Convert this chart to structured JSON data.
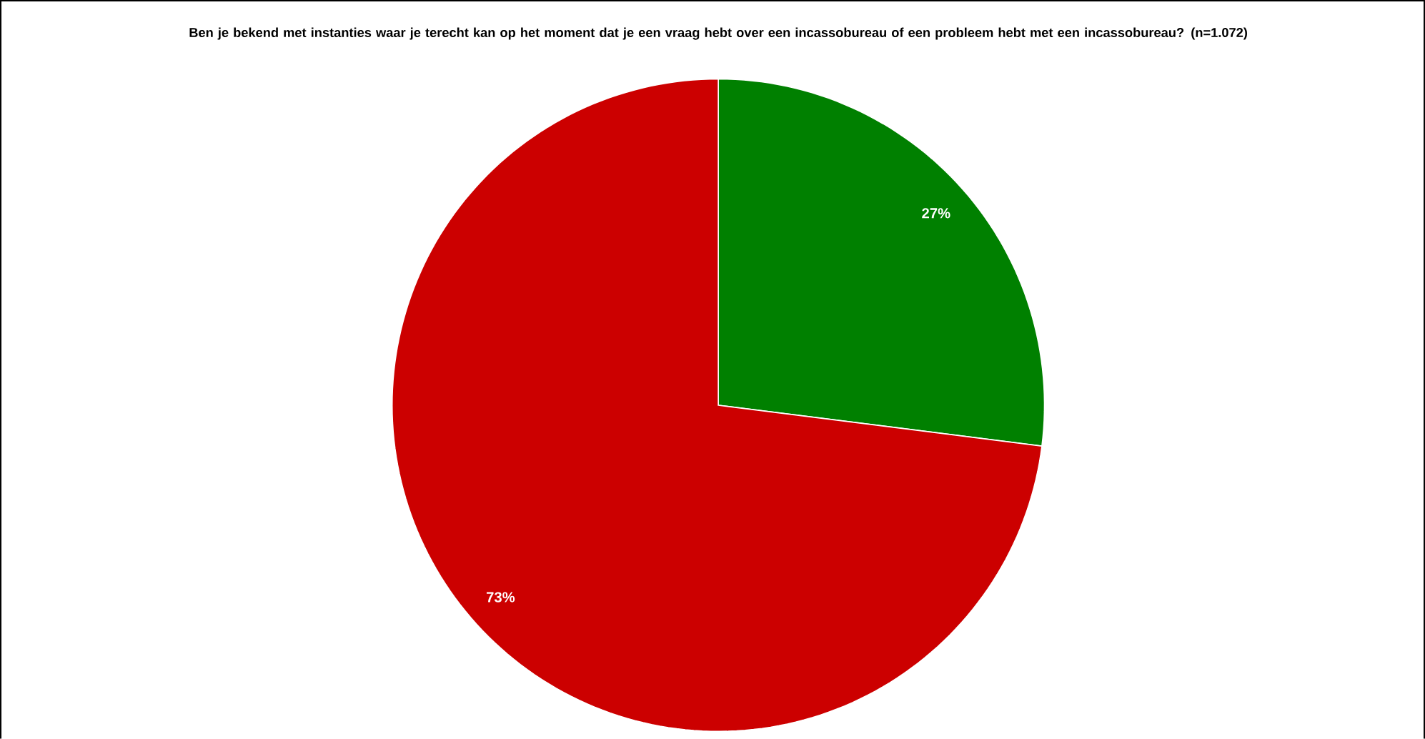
{
  "chart_data": {
    "type": "pie",
    "title": "Ben je bekend met instanties waar je terecht kan op het moment dat je een vraag hebt over een incassobureau of een probleem hebt met een incassobureau? (n=1.072)",
    "categories": [
      null,
      null
    ],
    "values": [
      27,
      73
    ],
    "colors": [
      "#008000",
      "#cc0000"
    ],
    "value_labels": [
      "27%",
      "73%"
    ]
  }
}
